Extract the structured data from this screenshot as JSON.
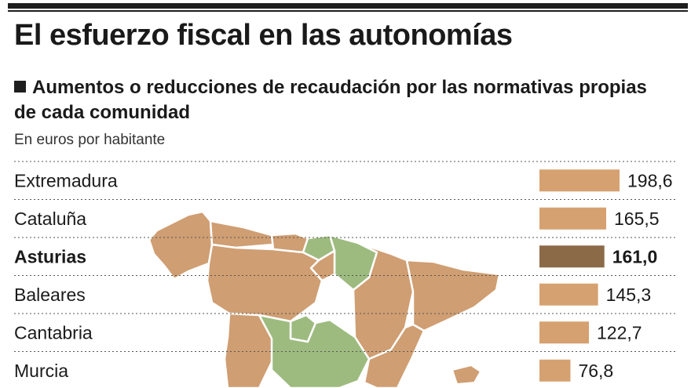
{
  "title": "El esfuerzo fiscal en las autonomías",
  "subtitle": "Aumentos o reducciones de recaudación por las normativas propias de cada comunidad",
  "units": "En euros por habitante",
  "colors": {
    "bar": "#d6a170",
    "highlight": "#8b6a48",
    "map_tan": "#cf9e72",
    "map_green": "#9dbb7f",
    "grid": "#555555"
  },
  "chart_data": {
    "type": "bar",
    "orientation": "horizontal",
    "title": "El esfuerzo fiscal en las autonomías",
    "subtitle": "Aumentos o reducciones de recaudación por las normativas propias de cada comunidad",
    "units": "En euros por habitante",
    "categories": [
      "Extremadura",
      "Cataluña",
      "Asturias",
      "Baleares",
      "Cantabria",
      "Murcia"
    ],
    "values": [
      198.6,
      165.5,
      161.0,
      145.3,
      122.7,
      76.8
    ],
    "value_labels": [
      "198,6",
      "165,5",
      "161,0",
      "145,3",
      "122,7",
      "76,8"
    ],
    "highlight": "Asturias",
    "grid": true
  }
}
